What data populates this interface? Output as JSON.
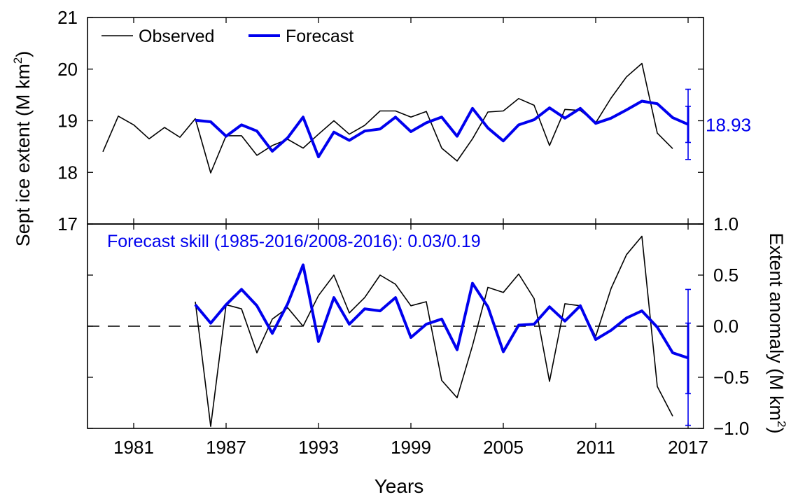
{
  "chart_data": {
    "type": "line",
    "xlabel": "Years",
    "xlim": [
      1978,
      2018
    ],
    "x_ticks": [
      1981,
      1987,
      1993,
      1999,
      2005,
      2011,
      2017
    ],
    "x_tick_labels": [
      "1981",
      "1987",
      "1993",
      "1999",
      "2005",
      "2011",
      "2017"
    ],
    "panels": [
      {
        "id": "top",
        "ylabel": "Sept ice extent (M km",
        "ylabel_sup": "2",
        "ylabel_close": ")",
        "y_axis_side": "left",
        "ylim": [
          17,
          21
        ],
        "y_ticks": [
          17,
          18,
          19,
          20,
          21
        ],
        "y_tick_labels": [
          "17",
          "18",
          "19",
          "20",
          "21"
        ],
        "legend": {
          "placement": "top-left",
          "entries": [
            {
              "label": "Observed",
              "series": "observed"
            },
            {
              "label": "Forecast",
              "series": "forecast"
            }
          ]
        },
        "series": [
          {
            "name": "Observed",
            "color": "#000000",
            "x": [
              1979,
              1980,
              1981,
              1982,
              1983,
              1984,
              1985,
              1986,
              1987,
              1988,
              1989,
              1990,
              1991,
              1992,
              1993,
              1994,
              1995,
              1996,
              1997,
              1998,
              1999,
              2000,
              2001,
              2002,
              2003,
              2004,
              2005,
              2006,
              2007,
              2008,
              2009,
              2010,
              2011,
              2012,
              2013,
              2014,
              2015,
              2016
            ],
            "y": [
              18.4,
              19.09,
              18.92,
              18.65,
              18.87,
              18.68,
              19.04,
              17.99,
              18.71,
              18.71,
              18.33,
              18.52,
              18.64,
              18.47,
              18.74,
              19.0,
              18.74,
              18.91,
              19.19,
              19.19,
              19.07,
              19.18,
              18.47,
              18.22,
              18.65,
              19.17,
              19.19,
              19.43,
              19.3,
              18.52,
              19.22,
              19.2,
              18.96,
              19.44,
              19.85,
              20.11,
              18.76,
              18.46
            ]
          },
          {
            "name": "Forecast",
            "color": "#0000ee",
            "x": [
              1985,
              1986,
              1987,
              1988,
              1989,
              1990,
              1991,
              1992,
              1993,
              1994,
              1995,
              1996,
              1997,
              1998,
              1999,
              2000,
              2001,
              2002,
              2003,
              2004,
              2005,
              2006,
              2007,
              2008,
              2009,
              2010,
              2011,
              2012,
              2013,
              2014,
              2015,
              2016,
              2017
            ],
            "y": [
              19.01,
              18.98,
              18.7,
              18.92,
              18.8,
              18.41,
              18.67,
              19.07,
              18.3,
              18.78,
              18.62,
              18.8,
              18.84,
              19.07,
              18.79,
              18.96,
              19.07,
              18.7,
              19.24,
              18.86,
              18.61,
              18.92,
              19.02,
              19.25,
              19.05,
              19.24,
              18.95,
              19.05,
              19.21,
              19.38,
              19.33,
              19.06,
              18.93
            ]
          }
        ],
        "error_bar": {
          "x": 2017,
          "y": 18.93,
          "inner": [
            18.58,
            19.28
          ],
          "outer": [
            18.25,
            19.61
          ],
          "color": "#0000ee",
          "label": "18.93"
        }
      },
      {
        "id": "bottom",
        "ylabel": "Extent anomaly (M km",
        "ylabel_sup": "2",
        "ylabel_close": ")",
        "y_axis_side": "right",
        "ylim": [
          -1.0,
          1.0
        ],
        "y_ticks": [
          -1.0,
          -0.5,
          0.0,
          0.5,
          1.0
        ],
        "y_tick_labels": [
          "−1.0",
          "−0.5",
          "0.0",
          "0.5",
          "1.0"
        ],
        "zero_line": true,
        "annotation": "Forecast skill (1985-2016/2008-2016): 0.03/0.19",
        "annotation_color": "#0000ee",
        "series": [
          {
            "name": "Observed",
            "color": "#000000",
            "x": [
              1985,
              1986,
              1987,
              1988,
              1989,
              1990,
              1991,
              1992,
              1993,
              1994,
              1995,
              1996,
              1997,
              1998,
              1999,
              2000,
              2001,
              2002,
              2003,
              2004,
              2005,
              2006,
              2007,
              2008,
              2009,
              2010,
              2011,
              2012,
              2013,
              2014,
              2015,
              2016
            ],
            "y": [
              0.24,
              -0.98,
              0.21,
              0.17,
              -0.26,
              0.07,
              0.18,
              0.0,
              0.3,
              0.5,
              0.13,
              0.28,
              0.5,
              0.41,
              0.2,
              0.24,
              -0.53,
              -0.7,
              -0.19,
              0.38,
              0.33,
              0.51,
              0.27,
              -0.54,
              0.22,
              0.2,
              -0.1,
              0.37,
              0.7,
              0.88,
              -0.59,
              -0.88
            ]
          },
          {
            "name": "Forecast",
            "color": "#0000ee",
            "x": [
              1985,
              1986,
              1987,
              1988,
              1989,
              1990,
              1991,
              1992,
              1993,
              1994,
              1995,
              1996,
              1997,
              1998,
              1999,
              2000,
              2001,
              2002,
              2003,
              2004,
              2005,
              2006,
              2007,
              2008,
              2009,
              2010,
              2011,
              2012,
              2013,
              2014,
              2015,
              2016,
              2017
            ],
            "y": [
              0.21,
              0.03,
              0.21,
              0.36,
              0.2,
              -0.07,
              0.22,
              0.6,
              -0.15,
              0.28,
              0.02,
              0.17,
              0.15,
              0.28,
              -0.11,
              0.02,
              0.07,
              -0.23,
              0.42,
              0.19,
              -0.25,
              0.01,
              0.02,
              0.19,
              0.05,
              0.2,
              -0.13,
              -0.04,
              0.08,
              0.15,
              -0.01,
              -0.26,
              -0.31
            ]
          }
        ],
        "error_bar": {
          "x": 2017,
          "y": -0.31,
          "inner": [
            -0.66,
            0.03
          ],
          "outer": [
            -0.97,
            0.36
          ],
          "color": "#0000ee"
        }
      }
    ]
  }
}
